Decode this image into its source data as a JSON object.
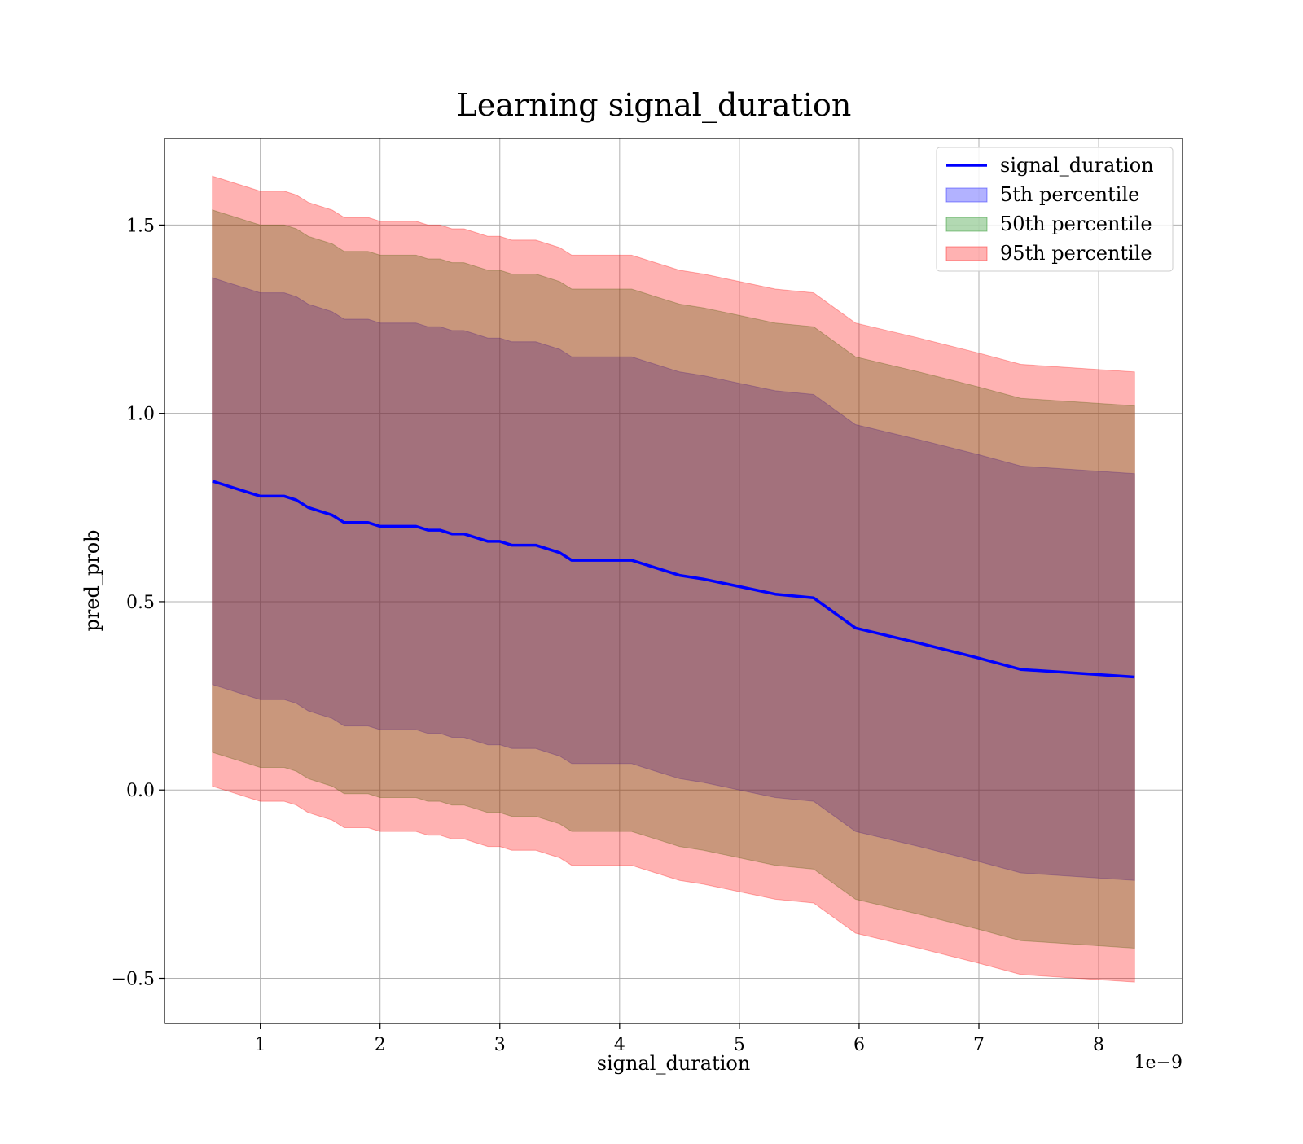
{
  "chart_data": {
    "type": "area",
    "title": "Learning signal_duration",
    "xlabel": "signal_duration",
    "ylabel": "pred_prob",
    "x_offset_text": "1e−9",
    "xlim": [
      0.2,
      8.7
    ],
    "ylim": [
      -0.62,
      1.73
    ],
    "x_ticks": [
      1,
      2,
      3,
      4,
      5,
      6,
      7,
      8
    ],
    "x_tick_labels": [
      "1",
      "2",
      "3",
      "4",
      "5",
      "6",
      "7",
      "8"
    ],
    "y_ticks": [
      -0.5,
      0.0,
      0.5,
      1.0,
      1.5
    ],
    "y_tick_labels": [
      "−0.5",
      "0.0",
      "0.5",
      "1.0",
      "1.5"
    ],
    "grid": true,
    "legend_position": "top-right",
    "x": [
      0.6,
      0.7,
      0.8,
      0.9,
      1.0,
      1.1,
      1.2,
      1.3,
      1.4,
      1.5,
      1.6,
      1.7,
      1.8,
      1.9,
      2.0,
      2.1,
      2.2,
      2.3,
      2.4,
      2.5,
      2.6,
      2.7,
      2.8,
      2.9,
      3.0,
      3.1,
      3.2,
      3.3,
      3.4,
      3.5,
      3.6,
      3.7,
      3.8,
      3.9,
      4.0,
      4.1,
      4.2,
      4.3,
      4.5,
      4.7,
      5.0,
      5.3,
      5.62,
      5.97,
      6.5,
      7.0,
      7.35,
      8.3
    ],
    "series": [
      {
        "name": "signal_duration",
        "kind": "line",
        "color": "#0000ff",
        "values": [
          0.82,
          0.81,
          0.8,
          0.79,
          0.78,
          0.78,
          0.78,
          0.77,
          0.75,
          0.74,
          0.73,
          0.71,
          0.71,
          0.71,
          0.7,
          0.7,
          0.7,
          0.7,
          0.69,
          0.69,
          0.68,
          0.68,
          0.67,
          0.66,
          0.66,
          0.65,
          0.65,
          0.65,
          0.64,
          0.63,
          0.61,
          0.61,
          0.61,
          0.61,
          0.61,
          0.61,
          0.6,
          0.59,
          0.57,
          0.56,
          0.54,
          0.52,
          0.51,
          0.43,
          0.39,
          0.35,
          0.32,
          0.3
        ]
      },
      {
        "name": "5th percentile",
        "kind": "band",
        "color": "#0000ff",
        "opacity": 0.3,
        "upper": [
          1.36,
          1.35,
          1.34,
          1.33,
          1.32,
          1.32,
          1.32,
          1.31,
          1.29,
          1.28,
          1.27,
          1.25,
          1.25,
          1.25,
          1.24,
          1.24,
          1.24,
          1.24,
          1.23,
          1.23,
          1.22,
          1.22,
          1.21,
          1.2,
          1.2,
          1.19,
          1.19,
          1.19,
          1.18,
          1.17,
          1.15,
          1.15,
          1.15,
          1.15,
          1.15,
          1.15,
          1.14,
          1.13,
          1.11,
          1.1,
          1.08,
          1.06,
          1.05,
          0.97,
          0.93,
          0.89,
          0.86,
          0.84
        ],
        "lower": [
          0.28,
          0.27,
          0.26,
          0.25,
          0.24,
          0.24,
          0.24,
          0.23,
          0.21,
          0.2,
          0.19,
          0.17,
          0.17,
          0.17,
          0.16,
          0.16,
          0.16,
          0.16,
          0.15,
          0.15,
          0.14,
          0.14,
          0.13,
          0.12,
          0.12,
          0.11,
          0.11,
          0.11,
          0.1,
          0.09,
          0.07,
          0.07,
          0.07,
          0.07,
          0.07,
          0.07,
          0.06,
          0.05,
          0.03,
          0.02,
          0.0,
          -0.02,
          -0.03,
          -0.11,
          -0.15,
          -0.19,
          -0.22,
          -0.24
        ]
      },
      {
        "name": "50th percentile",
        "kind": "band",
        "color": "#008000",
        "opacity": 0.3,
        "upper": [
          1.54,
          1.53,
          1.52,
          1.51,
          1.5,
          1.5,
          1.5,
          1.49,
          1.47,
          1.46,
          1.45,
          1.43,
          1.43,
          1.43,
          1.42,
          1.42,
          1.42,
          1.42,
          1.41,
          1.41,
          1.4,
          1.4,
          1.39,
          1.38,
          1.38,
          1.37,
          1.37,
          1.37,
          1.36,
          1.35,
          1.33,
          1.33,
          1.33,
          1.33,
          1.33,
          1.33,
          1.32,
          1.31,
          1.29,
          1.28,
          1.26,
          1.24,
          1.23,
          1.15,
          1.11,
          1.07,
          1.04,
          1.02
        ],
        "lower": [
          0.1,
          0.09,
          0.08,
          0.07,
          0.06,
          0.06,
          0.06,
          0.05,
          0.03,
          0.02,
          0.01,
          -0.01,
          -0.01,
          -0.01,
          -0.02,
          -0.02,
          -0.02,
          -0.02,
          -0.03,
          -0.03,
          -0.04,
          -0.04,
          -0.05,
          -0.06,
          -0.06,
          -0.07,
          -0.07,
          -0.07,
          -0.08,
          -0.09,
          -0.11,
          -0.11,
          -0.11,
          -0.11,
          -0.11,
          -0.11,
          -0.12,
          -0.13,
          -0.15,
          -0.16,
          -0.18,
          -0.2,
          -0.21,
          -0.29,
          -0.33,
          -0.37,
          -0.4,
          -0.42
        ]
      },
      {
        "name": "95th percentile",
        "kind": "band",
        "color": "#ff0000",
        "opacity": 0.3,
        "upper": [
          1.63,
          1.62,
          1.61,
          1.6,
          1.59,
          1.59,
          1.59,
          1.58,
          1.56,
          1.55,
          1.54,
          1.52,
          1.52,
          1.52,
          1.51,
          1.51,
          1.51,
          1.51,
          1.5,
          1.5,
          1.49,
          1.49,
          1.48,
          1.47,
          1.47,
          1.46,
          1.46,
          1.46,
          1.45,
          1.44,
          1.42,
          1.42,
          1.42,
          1.42,
          1.42,
          1.42,
          1.41,
          1.4,
          1.38,
          1.37,
          1.35,
          1.33,
          1.32,
          1.24,
          1.2,
          1.16,
          1.13,
          1.11
        ],
        "lower": [
          0.01,
          0.0,
          -0.01,
          -0.02,
          -0.03,
          -0.03,
          -0.03,
          -0.04,
          -0.06,
          -0.07,
          -0.08,
          -0.1,
          -0.1,
          -0.1,
          -0.11,
          -0.11,
          -0.11,
          -0.11,
          -0.12,
          -0.12,
          -0.13,
          -0.13,
          -0.14,
          -0.15,
          -0.15,
          -0.16,
          -0.16,
          -0.16,
          -0.17,
          -0.18,
          -0.2,
          -0.2,
          -0.2,
          -0.2,
          -0.2,
          -0.2,
          -0.21,
          -0.22,
          -0.24,
          -0.25,
          -0.27,
          -0.29,
          -0.3,
          -0.38,
          -0.42,
          -0.46,
          -0.49,
          -0.51
        ]
      }
    ]
  }
}
